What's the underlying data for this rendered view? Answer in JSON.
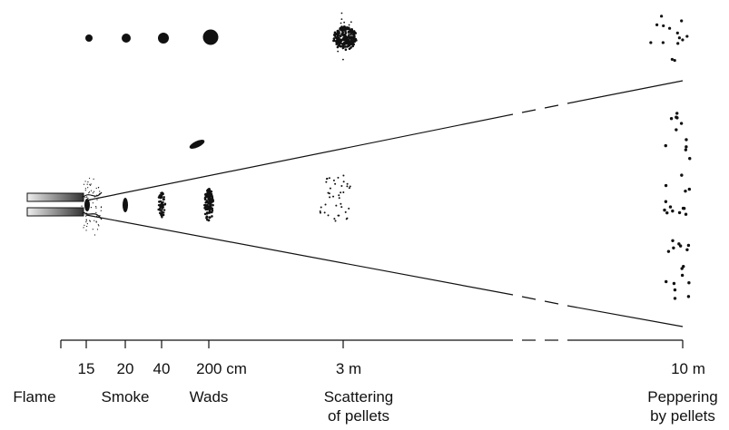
{
  "scale": {
    "ticks": [
      "15",
      "20",
      "40",
      "200 cm",
      "3 m",
      "10 m"
    ]
  },
  "stages": [
    {
      "lines": [
        "Flame"
      ]
    },
    {
      "lines": [
        "Smoke"
      ]
    },
    {
      "lines": [
        "Wads"
      ]
    },
    {
      "lines": [
        "Scattering",
        "of pellets"
      ]
    },
    {
      "lines": [
        "Peppering",
        "by pellets"
      ]
    }
  ]
}
